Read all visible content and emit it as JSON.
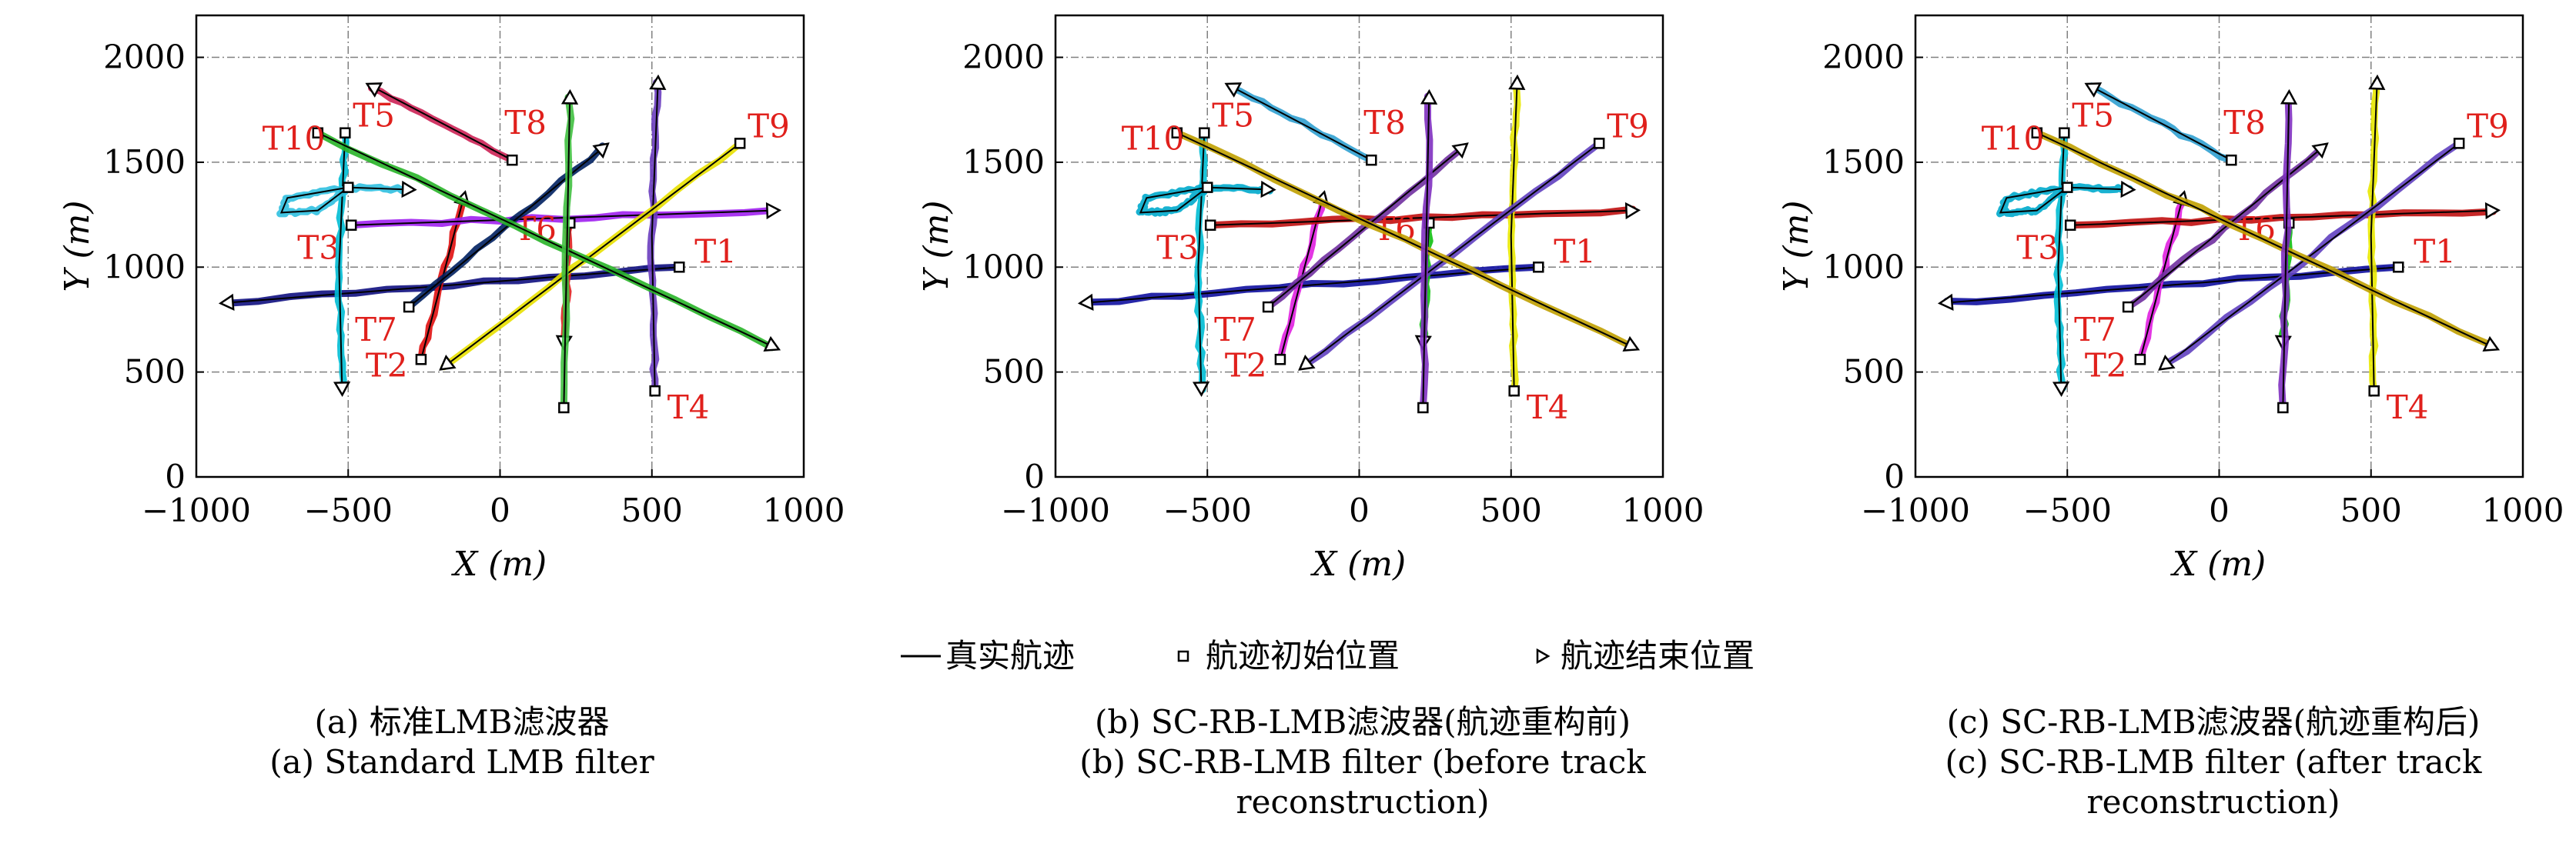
{
  "legend": {
    "truth_label": "真实航迹",
    "start_label": "航迹初始位置",
    "end_label": "航迹结束位置"
  },
  "captions": [
    {
      "zh": "(a) 标准LMB滤波器",
      "en": "(a) Standard LMB filter"
    },
    {
      "zh": "(b) SC-RB-LMB滤波器(航迹重构前)",
      "en": "(b) SC-RB-LMB filter (before track reconstruction)"
    },
    {
      "zh": "(c) SC-RB-LMB滤波器(航迹重构后)",
      "en": "(c) SC-RB-LMB filter (after track reconstruction)"
    }
  ],
  "colors": {
    "truth": "#000000",
    "target_label": "#e0201c",
    "axis": "#000000",
    "grid": "#808080"
  },
  "chart_data": {
    "type": "line",
    "panels": [
      {
        "id": "a",
        "estimate_colors": {
          "T1": "#101080",
          "T2": "#e01010",
          "T3": "#a020f0",
          "T4": "#6a3dbf",
          "T5": "#00bcd4",
          "T6": "#e02020",
          "T7": "#002060",
          "T8": "#cc2255",
          "T9": "#e8e000",
          "T10": "#28b428",
          "T11": "#30c0e0",
          "T12": "#40c040"
        }
      },
      {
        "id": "b",
        "estimate_colors": {
          "T1": "#1010a0",
          "T2": "#e020e0",
          "T3": "#c01010",
          "T4": "#e8e800",
          "T5": "#00bcd4",
          "T6": "#10c010",
          "T7": "#7030a0",
          "T8": "#30a0d0",
          "T9": "#6040c0",
          "T10": "#c0a000",
          "T11": "#00aacc",
          "T12": "#8030c0"
        }
      },
      {
        "id": "c",
        "estimate_colors": {
          "T1": "#1010a0",
          "T2": "#e020e0",
          "T3": "#c01010",
          "T4": "#e8e800",
          "T5": "#00bcd4",
          "T6": "#10c010",
          "T7": "#7030a0",
          "T8": "#30a0d0",
          "T9": "#6040c0",
          "T10": "#c0a000",
          "T11": "#00aacc",
          "T12": "#8030c0"
        }
      }
    ],
    "xlabel": "X (m)",
    "ylabel": "Y (m)",
    "xlim": [
      -1000,
      1000
    ],
    "ylim": [
      0,
      2200
    ],
    "xticks": [
      -1000,
      -500,
      0,
      500,
      1000
    ],
    "yticks": [
      0,
      500,
      1000,
      1500,
      2000
    ],
    "grid": true,
    "legend_position": "bottom-center",
    "tracks": [
      {
        "id": "T1",
        "label": "T1",
        "start": [
          590,
          1000
        ],
        "end": [
          -900,
          830
        ],
        "waypoints": [],
        "label_at": "right"
      },
      {
        "id": "T2",
        "label": "T2",
        "start": [
          -260,
          560
        ],
        "end": [
          -120,
          1330
        ],
        "waypoints": [],
        "label_at": "left"
      },
      {
        "id": "T3",
        "label": "T3",
        "start": [
          -490,
          1200
        ],
        "end": [
          900,
          1270
        ],
        "waypoints": [],
        "label_at": "below-left"
      },
      {
        "id": "T4",
        "label": "T4",
        "start": [
          510,
          410
        ],
        "end": [
          520,
          1880
        ],
        "waypoints": [
          [
            500,
            1150
          ]
        ],
        "label_at": "below-right"
      },
      {
        "id": "T5",
        "label": "T5",
        "start": [
          -510,
          1640
        ],
        "end": [
          -520,
          420
        ],
        "waypoints": [
          [
            -530,
            1000
          ]
        ],
        "label_at": "above-right"
      },
      {
        "id": "T6",
        "label": "T6",
        "start": [
          230,
          1210
        ],
        "end": [
          210,
          640
        ],
        "waypoints": [],
        "label_at": "left"
      },
      {
        "id": "T7",
        "label": "T7",
        "start": [
          -300,
          810
        ],
        "end": [
          340,
          1570
        ],
        "waypoints": [],
        "label_at": "below-left"
      },
      {
        "id": "T8",
        "label": "T8",
        "start": [
          40,
          1510
        ],
        "end": [
          -420,
          1860
        ],
        "waypoints": [],
        "label_at": "above"
      },
      {
        "id": "T9",
        "label": "T9",
        "start": [
          790,
          1590
        ],
        "end": [
          -180,
          530
        ],
        "waypoints": [],
        "label_at": "above-right"
      },
      {
        "id": "T10",
        "label": "",
        "start": [
          -600,
          1640
        ],
        "end": [
          900,
          620
        ],
        "waypoints": [],
        "label_at": "left"
      },
      {
        "id": "T11",
        "label": "",
        "start": [
          -500,
          1380
        ],
        "end": [
          -300,
          1370
        ],
        "waypoints": [
          [
            -700,
            1330
          ],
          [
            -720,
            1260
          ],
          [
            -600,
            1270
          ],
          [
            -500,
            1380
          ]
        ],
        "label_at": "none"
      },
      {
        "id": "T12",
        "label": "",
        "start": [
          210,
          330
        ],
        "end": [
          230,
          1810
        ],
        "waypoints": [],
        "label_at": "none"
      }
    ],
    "t10_label": "T10"
  }
}
